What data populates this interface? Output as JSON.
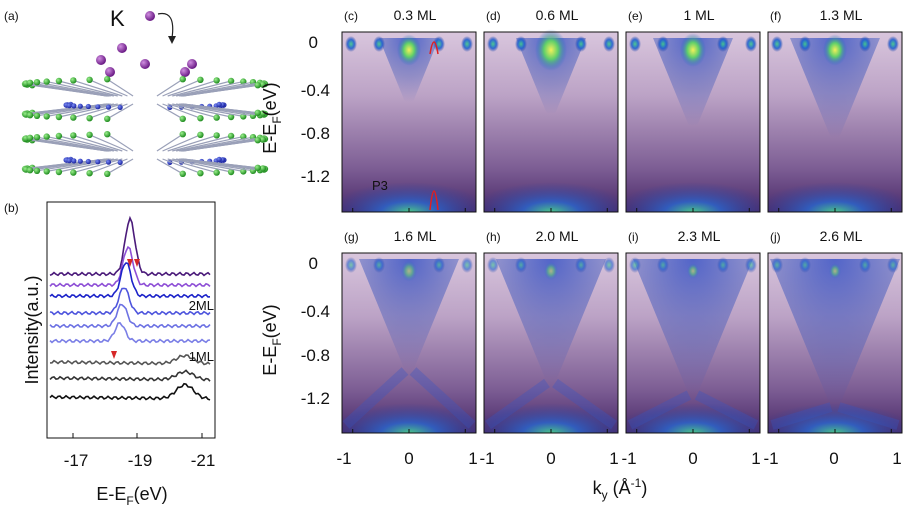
{
  "figure": {
    "panel_a": {
      "letter": "(a)",
      "adsorbate": "K"
    },
    "panel_b": {
      "letter": "(b)",
      "xlabel": "E-E",
      "xlabel_sub": "F",
      "xlabel_unit": "(eV)",
      "ylabel": "Intensity(a.u.)",
      "xticks": [
        "-17",
        "-19",
        "-21"
      ],
      "annotations": [
        "2ML",
        "1ML"
      ],
      "curve_colors": [
        "#4b1b7a",
        "#8e4fd6",
        "#1c23c9",
        "#4e55dd",
        "#6d72e3",
        "#7b7fe6",
        "#555555",
        "#333333",
        "#111111"
      ],
      "marker_color": "#d62728"
    },
    "arpes": {
      "ylabel": "E-E",
      "ylabel_sub": "F",
      "ylabel_unit": "(eV)",
      "yticks": [
        "0",
        "-0.4",
        "-0.8",
        "-1.2"
      ],
      "xlabel": "k",
      "xlabel_sub": "y",
      "xlabel_unit": " (Å",
      "xlabel_exp": "-1",
      "xlabel_close": ")",
      "xticks": [
        "-1",
        "0",
        "1"
      ],
      "p3_label": "P3",
      "panels": [
        {
          "letter": "(c)",
          "coverage": "0.3 ML"
        },
        {
          "letter": "(d)",
          "coverage": "0.6 ML"
        },
        {
          "letter": "(e)",
          "coverage": "1 ML"
        },
        {
          "letter": "(f)",
          "coverage": "1.3 ML"
        },
        {
          "letter": "(g)",
          "coverage": "1.6 ML"
        },
        {
          "letter": "(h)",
          "coverage": "2.0 ML"
        },
        {
          "letter": "(i)",
          "coverage": "2.3 ML"
        },
        {
          "letter": "(j)",
          "coverage": "2.6 ML"
        }
      ]
    }
  }
}
